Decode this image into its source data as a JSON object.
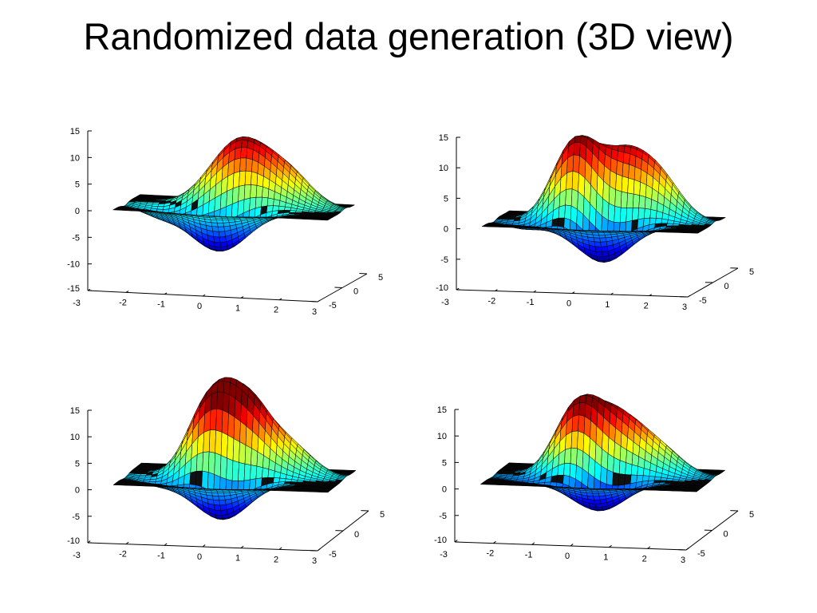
{
  "slide": {
    "title": "Randomized data generation (3D view)"
  },
  "chart_data": [
    {
      "type": "surface",
      "position": "top-left",
      "zlim": [
        -15,
        15
      ],
      "zticks": [
        "15",
        "10",
        "5",
        "0",
        "-5",
        "-10",
        "-15"
      ],
      "xticks": [
        "-3",
        "-2",
        "-1",
        "0",
        "1",
        "2",
        "3"
      ],
      "yticks": [
        "-5",
        "0",
        "5"
      ],
      "z_max_approx": 14,
      "z_min_approx": -9,
      "colormap": "jet",
      "mesh_lines": "#000000"
    },
    {
      "type": "surface",
      "position": "top-right",
      "zlim": [
        -10,
        15
      ],
      "zticks": [
        "15",
        "10",
        "5",
        "0",
        "-5",
        "-10"
      ],
      "xticks": [
        "-3",
        "-2",
        "-1",
        "0",
        "1",
        "2",
        "3"
      ],
      "yticks": [
        "-5",
        "0",
        "5"
      ],
      "z_max_approx": 14,
      "z_min_approx": -6.5,
      "colormap": "jet",
      "mesh_lines": "#000000"
    },
    {
      "type": "surface",
      "position": "bottom-left",
      "zlim": [
        -10,
        15
      ],
      "zticks": [
        "15",
        "10",
        "5",
        "0",
        "-5",
        "-10"
      ],
      "xticks": [
        "-3",
        "-2",
        "-1",
        "0",
        "1",
        "2",
        "3"
      ],
      "yticks": [
        "-5",
        "0",
        "5"
      ],
      "z_max_approx": 15,
      "z_min_approx": -8,
      "colormap": "jet",
      "mesh_lines": "#000000"
    },
    {
      "type": "surface",
      "position": "bottom-right",
      "zlim": [
        -10,
        15
      ],
      "zticks": [
        "15",
        "10",
        "5",
        "0",
        "-5",
        "-10"
      ],
      "xticks": [
        "-3",
        "-2",
        "-1",
        "0",
        "1",
        "2",
        "3"
      ],
      "yticks": [
        "-5",
        "0",
        "5"
      ],
      "z_max_approx": 14,
      "z_min_approx": -6,
      "colormap": "jet",
      "mesh_lines": "#000000"
    }
  ]
}
